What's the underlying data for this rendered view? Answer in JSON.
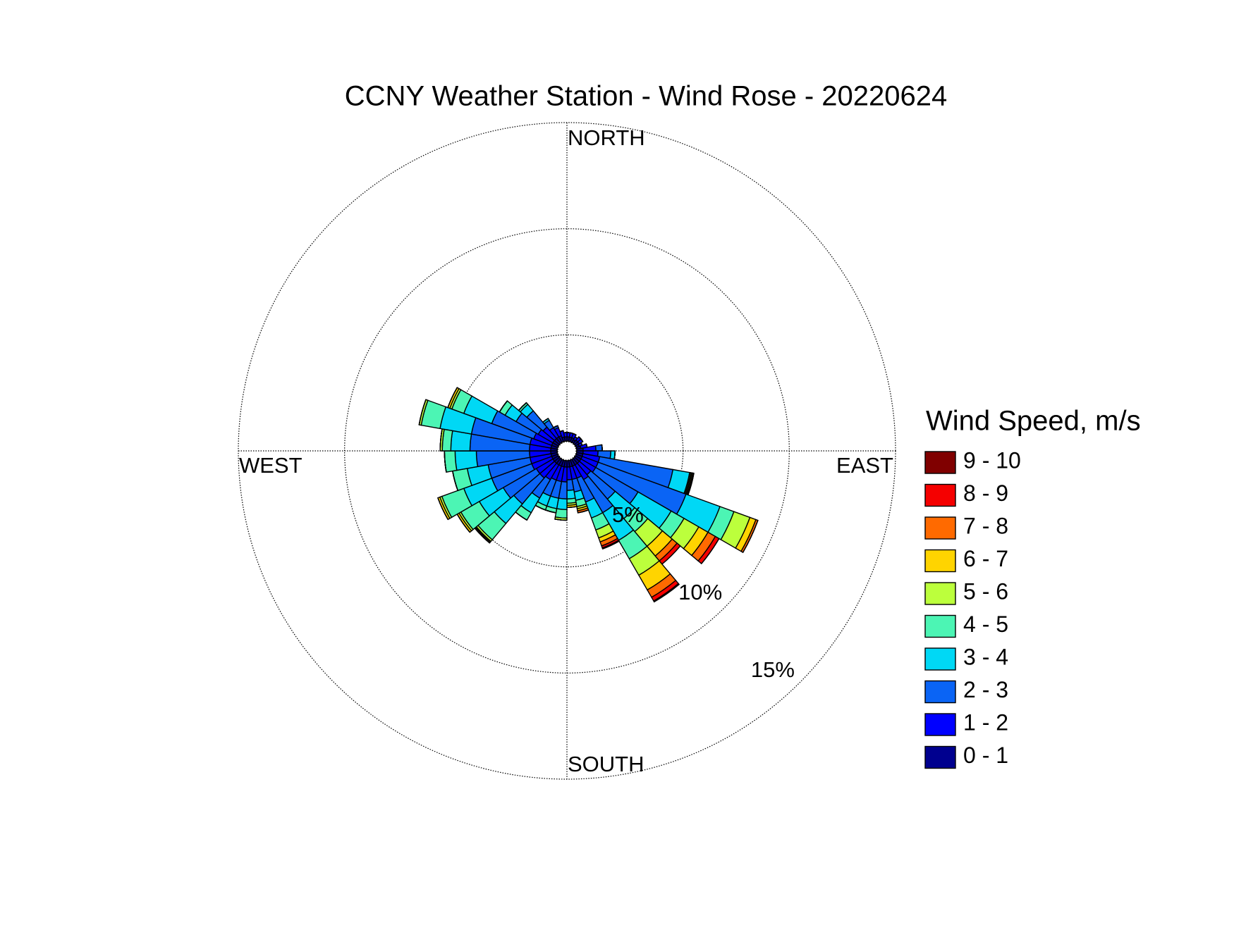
{
  "chart_data": {
    "type": "windrose",
    "title": "CCNY Weather Station - Wind Rose - 20220624",
    "direction_labels": {
      "north": "NORTH",
      "east": "EAST",
      "south": "SOUTH",
      "west": "WEST"
    },
    "legend_title": "Wind Speed, m/s",
    "rlim": [
      0,
      15
    ],
    "rticks": [
      {
        "value": 5,
        "label": "5%"
      },
      {
        "value": 10,
        "label": "10%"
      },
      {
        "value": 15,
        "label": "15%"
      }
    ],
    "series": [
      {
        "name": "0 - 1",
        "color": "#00008f",
        "values": [
          0.2,
          0.2,
          0.2,
          0.15,
          0.2,
          0.2,
          0.15,
          0.2,
          0.3,
          0.3,
          0.3,
          0.3,
          0.3,
          0.3,
          0.3,
          0.3,
          0.3,
          0.3,
          0.3,
          0.3,
          0.3,
          0.3,
          0.3,
          0.3,
          0.3,
          0.3,
          0.3,
          0.3,
          0.3,
          0.3,
          0.3,
          0.3,
          0.3,
          0.3,
          0.2,
          0.2
        ]
      },
      {
        "name": "1 - 2",
        "color": "#0000ff",
        "values": [
          0.2,
          0.2,
          0.2,
          0.15,
          0.2,
          0.2,
          0.15,
          0.3,
          0.6,
          0.7,
          0.8,
          0.8,
          0.8,
          0.7,
          0.8,
          0.6,
          0.6,
          0.6,
          0.7,
          0.7,
          0.7,
          0.8,
          0.9,
          0.9,
          1.0,
          1.0,
          1.0,
          1.0,
          1.0,
          0.9,
          0.8,
          0.7,
          0.5,
          0.4,
          0.3,
          0.2
        ]
      },
      {
        "name": "2 - 3",
        "color": "#0a64f5",
        "values": [
          0,
          0,
          0,
          0,
          0,
          0,
          0,
          0,
          0.3,
          0.6,
          3.5,
          4.4,
          2.3,
          1.5,
          1.8,
          1.2,
          0.6,
          0.5,
          0.8,
          0.8,
          0.8,
          1.0,
          1.6,
          1.8,
          2.0,
          2.0,
          2.5,
          2.8,
          2.8,
          2.1,
          1.2,
          1.0,
          0.4,
          0.1,
          0,
          0
        ]
      },
      {
        "name": "3 - 4",
        "color": "#00d8f5",
        "values": [
          0,
          0,
          0,
          0,
          0,
          0,
          0,
          0,
          0,
          0.2,
          0.8,
          1.7,
          1.8,
          1.2,
          1.5,
          0.8,
          0.4,
          0.4,
          0.5,
          0.5,
          0.5,
          0.8,
          1.2,
          1.3,
          1.4,
          1.0,
          1.0,
          0.9,
          1.5,
          1.4,
          0.6,
          0.4,
          0.1,
          0,
          0,
          0
        ]
      },
      {
        "name": "4 - 5",
        "color": "#4cf5b4",
        "values": [
          0,
          0,
          0,
          0,
          0,
          0,
          0,
          0,
          0,
          0,
          0.05,
          0.7,
          0.7,
          0.8,
          1.0,
          0.6,
          0.3,
          0.2,
          0.4,
          0.2,
          0.2,
          0.4,
          1.0,
          1.0,
          1.1,
          0.7,
          0.5,
          0.4,
          0.9,
          0.6,
          0.3,
          0.1,
          0,
          0,
          0,
          0
        ]
      },
      {
        "name": "5 - 6",
        "color": "#bcff3c",
        "values": [
          0,
          0,
          0,
          0,
          0,
          0,
          0,
          0,
          0,
          0,
          0.05,
          0.8,
          0.8,
          0.9,
          0.9,
          0.4,
          0.1,
          0.1,
          0.1,
          0,
          0,
          0,
          0.1,
          0.1,
          0.1,
          0,
          0,
          0.1,
          0.1,
          0.1,
          0,
          0,
          0,
          0,
          0,
          0
        ]
      },
      {
        "name": "6 - 7",
        "color": "#ffd400",
        "values": [
          0,
          0,
          0,
          0,
          0,
          0,
          0,
          0,
          0,
          0,
          0.05,
          0.3,
          0.5,
          0.6,
          0.8,
          0.2,
          0.1,
          0.1,
          0,
          0,
          0,
          0,
          0.05,
          0.1,
          0.1,
          0,
          0,
          0,
          0,
          0.1,
          0,
          0,
          0,
          0,
          0,
          0
        ]
      },
      {
        "name": "7 - 8",
        "color": "#ff6a00",
        "values": [
          0,
          0,
          0,
          0,
          0,
          0,
          0,
          0,
          0,
          0,
          0.05,
          0.1,
          0.4,
          0.3,
          0.4,
          0.2,
          0.1,
          0,
          0,
          0,
          0,
          0,
          0.05,
          0,
          0,
          0,
          0,
          0,
          0,
          0,
          0,
          0,
          0,
          0,
          0,
          0
        ]
      },
      {
        "name": "8 - 9",
        "color": "#f50000",
        "values": [
          0,
          0,
          0,
          0,
          0,
          0,
          0,
          0,
          0,
          0,
          0,
          0,
          0.2,
          0.2,
          0.2,
          0.1,
          0,
          0,
          0,
          0,
          0,
          0,
          0,
          0,
          0,
          0,
          0,
          0,
          0,
          0,
          0,
          0,
          0,
          0,
          0,
          0
        ]
      },
      {
        "name": "9 - 10",
        "color": "#800000",
        "values": [
          0,
          0,
          0,
          0,
          0,
          0,
          0,
          0,
          0,
          0,
          0,
          0,
          0,
          0,
          0.05,
          0.05,
          0,
          0,
          0,
          0,
          0,
          0,
          0,
          0,
          0,
          0,
          0,
          0,
          0,
          0,
          0,
          0,
          0,
          0,
          0,
          0
        ]
      }
    ]
  }
}
